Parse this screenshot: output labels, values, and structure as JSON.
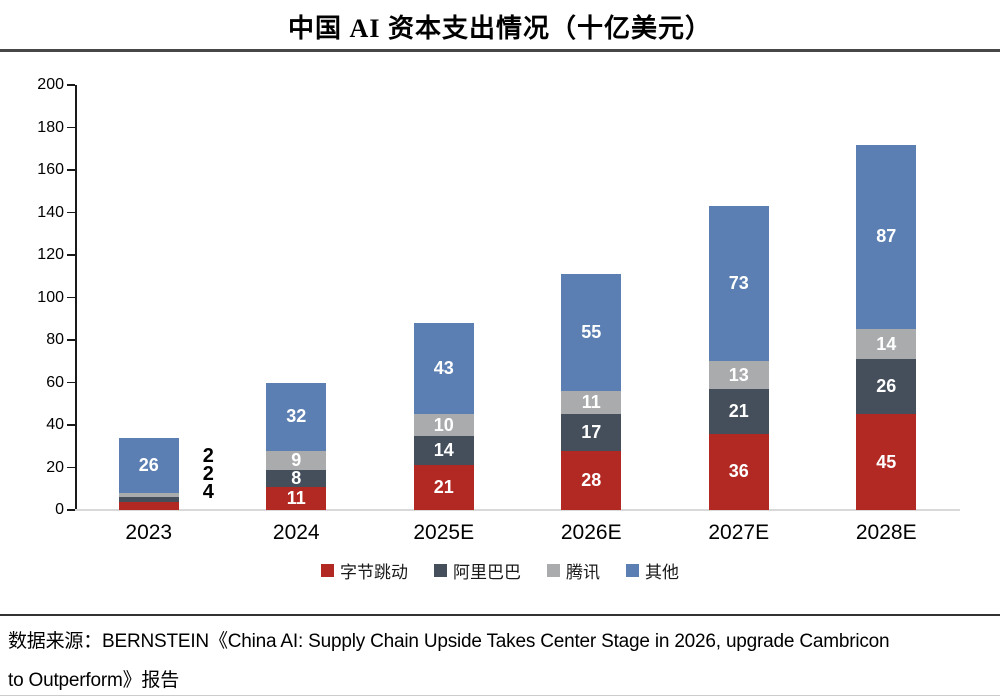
{
  "title": "中国 AI 资本支出情况（十亿美元）",
  "chart_data": {
    "type": "bar",
    "subtype": "stacked",
    "title": "中国 AI 资本支出情况（十亿美元）",
    "categories": [
      "2023",
      "2024",
      "2025E",
      "2026E",
      "2027E",
      "2028E"
    ],
    "series": [
      {
        "name": "字节跳动",
        "color": "#b22822",
        "values": [
          4,
          11,
          21,
          28,
          36,
          45
        ]
      },
      {
        "name": "阿里巴巴",
        "color": "#454f5c",
        "values": [
          2,
          8,
          14,
          17,
          21,
          26
        ]
      },
      {
        "name": "腾讯",
        "color": "#a9abad",
        "values": [
          2,
          9,
          10,
          11,
          13,
          14
        ]
      },
      {
        "name": "其他",
        "color": "#5b7fb2",
        "values": [
          26,
          32,
          43,
          55,
          73,
          87
        ]
      }
    ],
    "totals": [
      34,
      60,
      88,
      111,
      143,
      172
    ],
    "ylim": [
      0,
      200
    ],
    "ytick_step": 20,
    "grid": false,
    "legend_position": "bottom",
    "value_label_color_inside": "#ffffff",
    "outside_labels_2023_top_to_bottom": [
      2,
      2,
      4
    ]
  },
  "source": {
    "line1": "数据来源：BERNSTEIN《China AI: Supply Chain Upside Takes Center Stage in 2026, upgrade Cambricon",
    "line2": "to Outperform》报告"
  }
}
